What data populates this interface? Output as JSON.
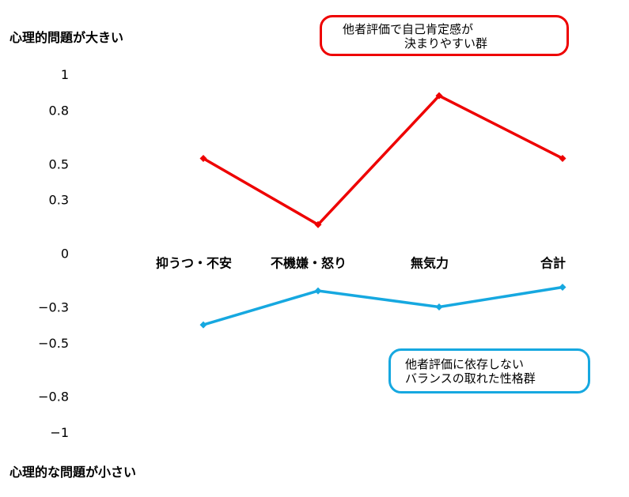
{
  "labels": {
    "top": "心理的問題が大きい",
    "bottom": "心理的な問題が小さい"
  },
  "callouts": {
    "red": {
      "line1": "他者評価で自己肯定感が",
      "line2": "決まりやすい群"
    },
    "blue": {
      "line1": "他者評価に依存しない",
      "line2": "バランスの取れた性格群"
    }
  },
  "colors": {
    "red": "#ee0000",
    "blue": "#16a8e0"
  },
  "chart_data": {
    "type": "line",
    "categories": [
      "抑うつ・不安",
      "不機嫌・怒り",
      "無気力",
      "合計"
    ],
    "yticks": [
      "1",
      "0.8",
      "0.5",
      "0.3",
      "0",
      "−0.3",
      "−0.5",
      "−0.8",
      "−1"
    ],
    "ylim": [
      -1,
      1
    ],
    "grid": false,
    "legend": "none",
    "series": [
      {
        "values": [
          0.53,
          0.16,
          0.88,
          0.53
        ],
        "color": "#ee0000"
      },
      {
        "values": [
          -0.4,
          -0.21,
          -0.3,
          -0.19
        ],
        "color": "#16a8e0"
      }
    ]
  }
}
